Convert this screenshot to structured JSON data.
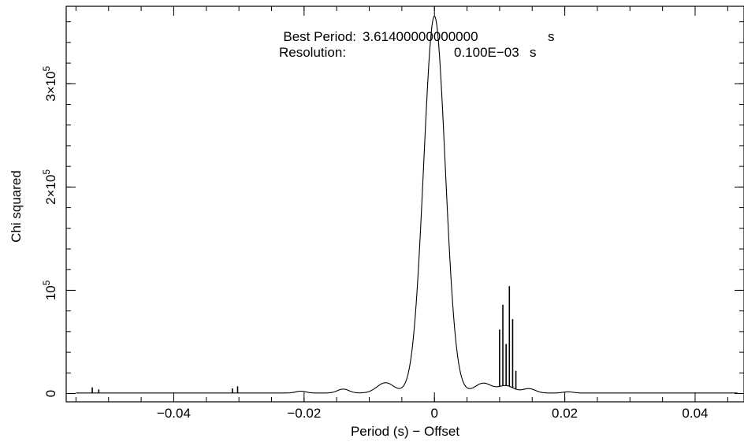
{
  "chart_data": {
    "type": "line",
    "title_lines": [
      {
        "label": "Best Period:",
        "value": "3.61400000000000",
        "unit": "s"
      },
      {
        "label": "Resolution:",
        "value": "0.100E−03",
        "unit": "s"
      }
    ],
    "xlabel": "Period (s) − Offset",
    "ylabel": "Chi squared",
    "xlim": [
      -0.0565,
      0.0475
    ],
    "ylim": [
      -8000,
      375000
    ],
    "x_ticks": [
      {
        "value": -0.04,
        "label": "−0.04"
      },
      {
        "value": -0.02,
        "label": "−0.02"
      },
      {
        "value": 0,
        "label": "0"
      },
      {
        "value": 0.02,
        "label": "0.02"
      },
      {
        "value": 0.04,
        "label": "0.04"
      }
    ],
    "y_ticks": [
      {
        "value": 0,
        "mantissa": "0",
        "exponent": ""
      },
      {
        "value": 100000,
        "mantissa": "10",
        "exponent": "5"
      },
      {
        "value": 200000,
        "mantissa": "2×10",
        "exponent": "5"
      },
      {
        "value": 300000,
        "mantissa": "3×10",
        "exponent": "5"
      }
    ],
    "x_minor_step": 0.005,
    "y_minor_step": 20000,
    "grid": false,
    "legend": "none",
    "series": [
      {
        "x_start": -0.055,
        "x_end": 0.0465,
        "baseline": 500,
        "features": [
          {
            "type": "gauss",
            "center": 0.0,
            "amplitude": 365000,
            "sigma": 0.00165
          },
          {
            "type": "gauss",
            "center": -0.0075,
            "amplitude": 10000,
            "sigma": 0.0013
          },
          {
            "type": "gauss",
            "center": 0.0075,
            "amplitude": 9500,
            "sigma": 0.0013
          },
          {
            "type": "gauss",
            "center": -0.014,
            "amplitude": 3800,
            "sigma": 0.0009
          },
          {
            "type": "gauss",
            "center": 0.0145,
            "amplitude": 4200,
            "sigma": 0.001
          },
          {
            "type": "gauss",
            "center": -0.0205,
            "amplitude": 1800,
            "sigma": 0.0008
          },
          {
            "type": "gauss",
            "center": 0.0205,
            "amplitude": 1200,
            "sigma": 0.0008
          },
          {
            "type": "gauss",
            "center": 0.011,
            "amplitude": 7000,
            "sigma": 0.0012
          }
        ],
        "spikes": [
          {
            "x": 0.01,
            "y": 62000
          },
          {
            "x": 0.0105,
            "y": 86000
          },
          {
            "x": 0.011,
            "y": 48000
          },
          {
            "x": 0.0115,
            "y": 104000
          },
          {
            "x": 0.012,
            "y": 72000
          },
          {
            "x": 0.0125,
            "y": 22000
          },
          {
            "x": -0.0525,
            "y": 6000
          },
          {
            "x": -0.0515,
            "y": 4000
          },
          {
            "x": -0.031,
            "y": 5000
          },
          {
            "x": -0.0302,
            "y": 7000
          }
        ]
      }
    ]
  }
}
